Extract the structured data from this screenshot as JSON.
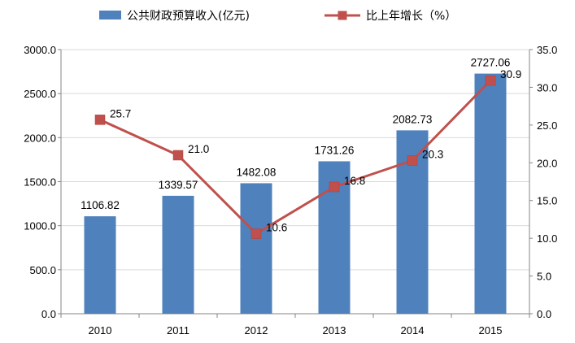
{
  "chart_data": {
    "type": "bar",
    "categories": [
      "2010",
      "2011",
      "2012",
      "2013",
      "2014",
      "2015"
    ],
    "series": [
      {
        "name": "公共财政预算收入(亿元)",
        "type": "bar",
        "axis": "left",
        "color": "#4F81BD",
        "values": [
          1106.82,
          1339.57,
          1482.08,
          1731.26,
          2082.73,
          2727.06
        ],
        "labels": [
          "1106.82",
          "1339.57",
          "1482.08",
          "1731.26",
          "2082.73",
          "2727.06"
        ]
      },
      {
        "name": "比上年增长（%）",
        "type": "line",
        "axis": "right",
        "color": "#C0504D",
        "values": [
          25.7,
          21.0,
          10.6,
          16.8,
          20.3,
          30.9
        ],
        "labels": [
          "25.7",
          "21.0",
          "10.6",
          "16.8",
          "20.3",
          "30.9"
        ]
      }
    ],
    "y_left": {
      "lim": [
        0,
        3000
      ],
      "ticks": [
        "0.0",
        "500.0",
        "1000.0",
        "1500.0",
        "2000.0",
        "2500.0",
        "3000.0"
      ]
    },
    "y_right": {
      "lim": [
        0,
        35
      ],
      "ticks": [
        "0.0",
        "5.0",
        "10.0",
        "15.0",
        "20.0",
        "25.0",
        "30.0",
        "35.0"
      ]
    },
    "grid": true,
    "legend_position": "top"
  }
}
